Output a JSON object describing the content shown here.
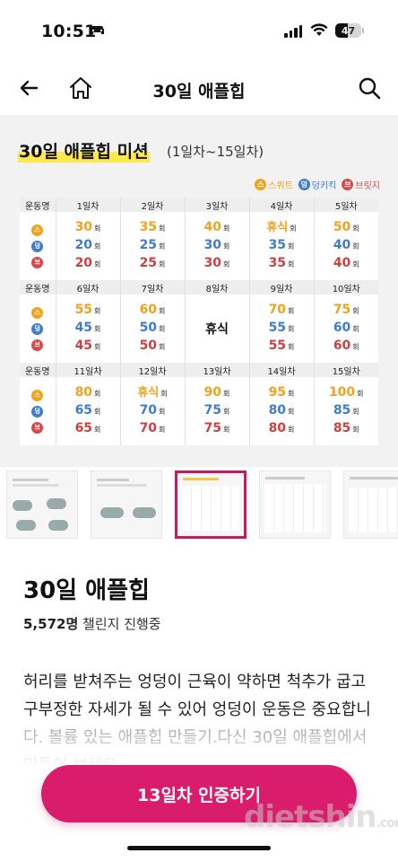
{
  "status": {
    "time": "10:51",
    "battery": "47"
  },
  "header": {
    "title": "30일 애플힙"
  },
  "hero": {
    "title": "30일 애플힙 미션",
    "subtitle": "(1일차~15일차)",
    "legend": [
      {
        "short": "스",
        "label": "스쿼트",
        "color": "#f3a21b"
      },
      {
        "short": "덩",
        "label": "덩키킥",
        "color": "#3f7cc9"
      },
      {
        "short": "브",
        "label": "브릿지",
        "color": "#d94848"
      }
    ],
    "unit": "회",
    "exercise_col_label": "운동명",
    "blocks": [
      {
        "days": [
          "1일차",
          "2일차",
          "3일차",
          "4일차",
          "5일차"
        ],
        "cells": [
          [
            "30",
            "20",
            "20"
          ],
          [
            "35",
            "25",
            "25"
          ],
          [
            "40",
            "30",
            "30"
          ],
          [
            "휴식",
            "35",
            "35"
          ],
          [
            "50",
            "40",
            "40"
          ]
        ]
      },
      {
        "days": [
          "6일차",
          "7일차",
          "8일차",
          "9일차",
          "10일차"
        ],
        "cells": [
          [
            "55",
            "45",
            "45"
          ],
          [
            "60",
            "50",
            "50"
          ],
          "휴식",
          [
            "70",
            "55",
            "55"
          ],
          [
            "75",
            "60",
            "60"
          ]
        ]
      },
      {
        "days": [
          "11일차",
          "12일차",
          "13일차",
          "14일차",
          "15일차"
        ],
        "cells": [
          [
            "80",
            "65",
            "65"
          ],
          [
            "휴식",
            "70",
            "70"
          ],
          [
            "90",
            "75",
            "75"
          ],
          [
            "95",
            "80",
            "80"
          ],
          [
            "100",
            "85",
            "85"
          ]
        ]
      }
    ]
  },
  "info": {
    "title": "30일 애플힙",
    "participants_count": "5,572명",
    "participants_label": "챌린지 진행중",
    "description": "허리를 받쳐주는 엉덩이 근육이 약하면 척추가 굽고 구부정한 자세가 될 수 있어 엉덩이 운동은 중요합니다. 볼륨 있는 애플힙 만들기.다신 30일 애플힙에서 만들어 보세요."
  },
  "cta": {
    "label": "13일차 인증하기"
  },
  "watermark": {
    "main": "dietshin",
    "suffix": ".com"
  },
  "colors": {
    "brand": "#d91c6b",
    "squat": "#f3a21b",
    "donkey": "#3f7cc9",
    "bridge": "#d94848"
  }
}
